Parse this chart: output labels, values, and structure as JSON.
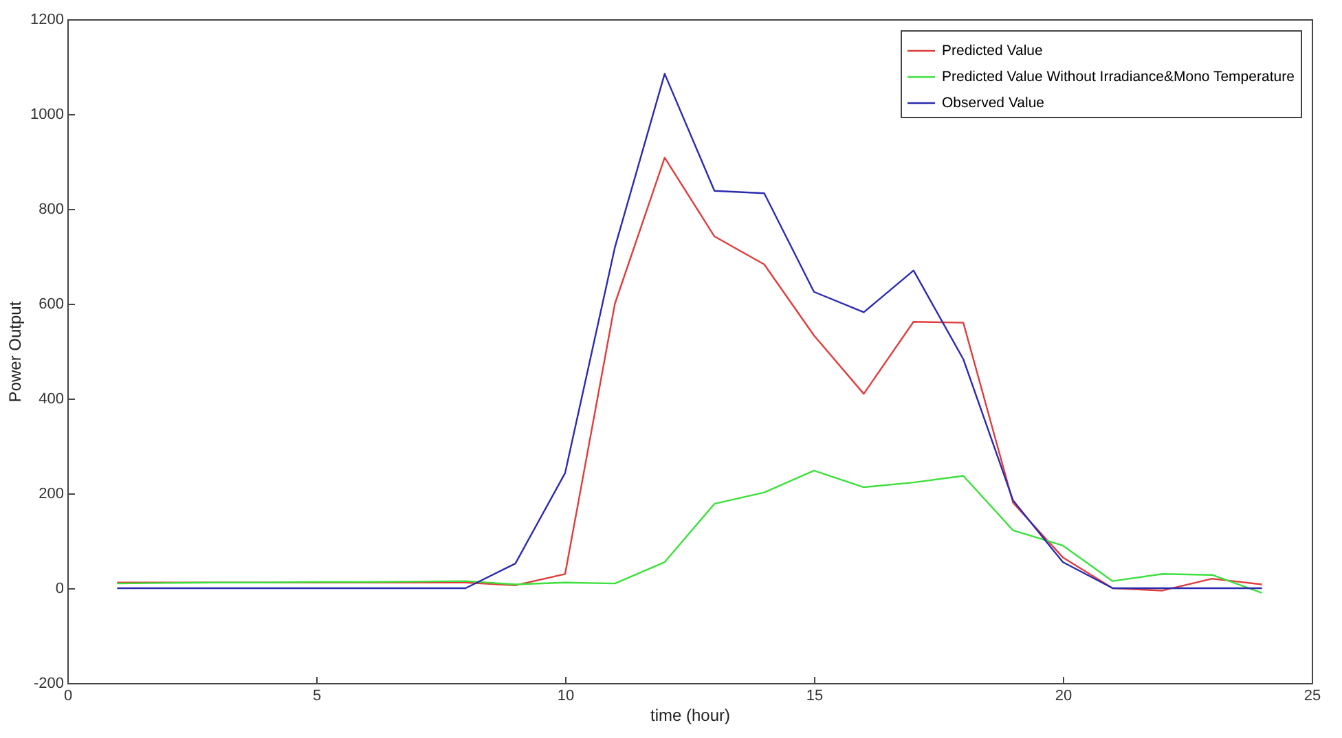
{
  "chart_data": {
    "type": "line",
    "xlabel": "time (hour)",
    "ylabel": "Power Output",
    "x": [
      1,
      2,
      3,
      4,
      5,
      6,
      7,
      8,
      9,
      10,
      11,
      12,
      13,
      14,
      15,
      16,
      17,
      18,
      19,
      20,
      21,
      22,
      23,
      24
    ],
    "series": [
      {
        "name": "Predicted Value",
        "color": "#e03c3c",
        "values": [
          12,
          12,
          12,
          12,
          12,
          12,
          12,
          12,
          6,
          30,
          600,
          908,
          742,
          683,
          533,
          410,
          562,
          560,
          180,
          65,
          0,
          -5,
          20,
          8
        ]
      },
      {
        "name": "Predicted Value Without Irradiance&Mono Temperature",
        "color": "#3ce03c",
        "values": [
          10,
          11,
          12,
          12,
          13,
          13,
          14,
          15,
          8,
          12,
          10,
          55,
          178,
          202,
          248,
          213,
          223,
          237,
          122,
          90,
          15,
          30,
          28,
          -10
        ]
      },
      {
        "name": "Observed Value",
        "color": "#2b2bb0",
        "values": [
          0,
          0,
          0,
          0,
          0,
          0,
          0,
          0,
          52,
          243,
          719,
          1085,
          838,
          833,
          625,
          582,
          670,
          483,
          185,
          55,
          0,
          0,
          0,
          0
        ]
      }
    ],
    "xlim": [
      0,
      25
    ],
    "xticks": [
      0,
      5,
      10,
      15,
      20,
      25
    ],
    "ylim": [
      -200,
      1200
    ],
    "yticks": [
      -200,
      0,
      200,
      400,
      600,
      800,
      1000,
      1200
    ],
    "grid": false,
    "legend": "top right",
    "marker": "none",
    "line_style": "solid"
  }
}
